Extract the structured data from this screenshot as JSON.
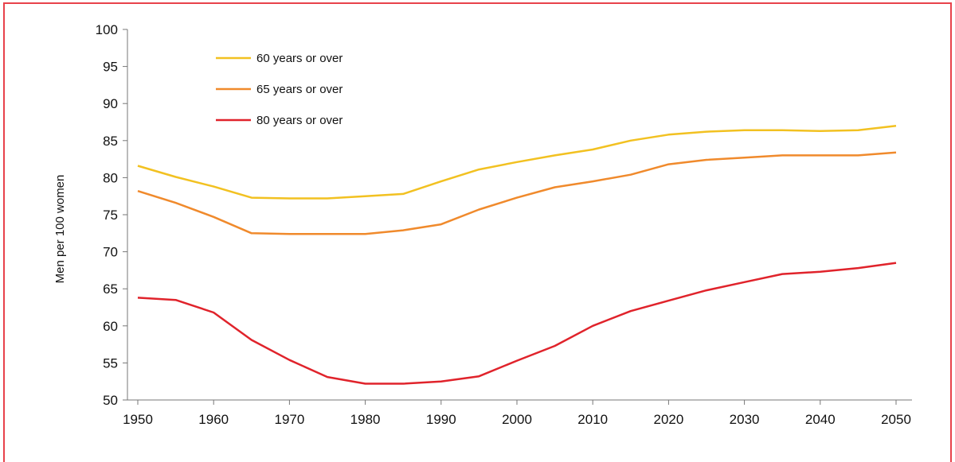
{
  "chart_data": {
    "type": "line",
    "title": "",
    "xlabel": "",
    "ylabel": "Men per 100 women",
    "xlim": [
      1950,
      2050
    ],
    "ylim": [
      50,
      100
    ],
    "xticks": [
      1950,
      1960,
      1970,
      1980,
      1990,
      2000,
      2010,
      2020,
      2030,
      2040,
      2050
    ],
    "yticks": [
      50,
      55,
      60,
      65,
      70,
      75,
      80,
      85,
      90,
      95,
      100
    ],
    "grid": false,
    "legend_position": "top-left",
    "x": [
      1950,
      1955,
      1960,
      1965,
      1970,
      1975,
      1980,
      1985,
      1990,
      1995,
      2000,
      2005,
      2010,
      2015,
      2020,
      2025,
      2030,
      2035,
      2040,
      2045,
      2050
    ],
    "series": [
      {
        "name": "60 years or over",
        "color": "#f2c121",
        "values": [
          81.6,
          80.1,
          78.8,
          77.3,
          77.2,
          77.2,
          77.5,
          77.8,
          79.5,
          81.1,
          82.1,
          83.0,
          83.8,
          85.0,
          85.8,
          86.2,
          86.4,
          86.4,
          86.3,
          86.4,
          87.0
        ]
      },
      {
        "name": "65 years or over",
        "color": "#f08a2c",
        "values": [
          78.2,
          76.6,
          74.7,
          72.5,
          72.4,
          72.4,
          72.4,
          72.9,
          73.7,
          75.7,
          77.3,
          78.7,
          79.5,
          80.4,
          81.8,
          82.4,
          82.7,
          83.0,
          83.0,
          83.0,
          83.4
        ]
      },
      {
        "name": "80 years or over",
        "color": "#e0232b",
        "values": [
          63.8,
          63.5,
          61.8,
          58.1,
          55.4,
          53.1,
          52.2,
          52.2,
          52.5,
          53.2,
          55.3,
          57.3,
          60.0,
          62.0,
          63.4,
          64.8,
          65.9,
          67.0,
          67.3,
          67.8,
          68.5
        ]
      }
    ]
  }
}
